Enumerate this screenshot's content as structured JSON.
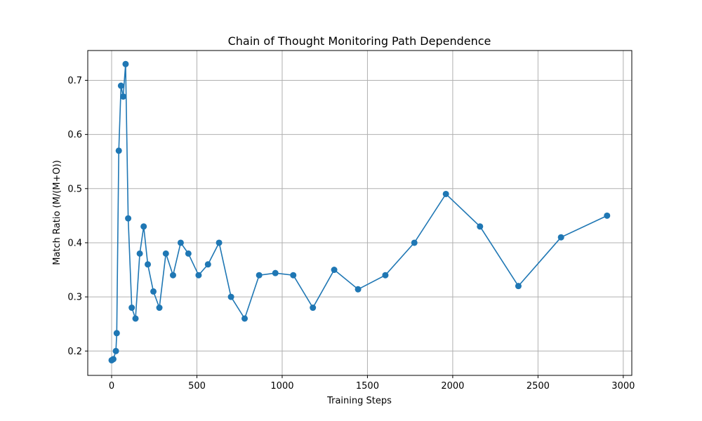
{
  "chart_data": {
    "type": "line",
    "title": "Chain of Thought Monitoring Path Dependence",
    "xlabel": "Training Steps",
    "ylabel": "Match Ratio (M/(M+O))",
    "xlim": [
      -140,
      3050
    ],
    "ylim": [
      0.155,
      0.755
    ],
    "xticks": [
      0,
      500,
      1000,
      1500,
      2000,
      2500,
      3000
    ],
    "yticks": [
      0.2,
      0.3,
      0.4,
      0.5,
      0.6,
      0.7
    ],
    "xtick_labels": [
      "0",
      "500",
      "1000",
      "1500",
      "2000",
      "2500",
      "3000"
    ],
    "ytick_labels": [
      "0.2",
      "0.3",
      "0.4",
      "0.5",
      "0.6",
      "0.7"
    ],
    "grid": true,
    "series_color": "#1f77b4",
    "series": [
      {
        "x": [
          0,
          10,
          25,
          30,
          42,
          55,
          68,
          82,
          97,
          118,
          140,
          165,
          188,
          212,
          245,
          280,
          318,
          360,
          405,
          450,
          510,
          565,
          630,
          700,
          780,
          865,
          960,
          1065,
          1180,
          1305,
          1445,
          1605,
          1775,
          1960,
          2160,
          2385,
          2635,
          2905
        ],
        "y": [
          0.183,
          0.185,
          0.2,
          0.233,
          0.57,
          0.69,
          0.67,
          0.73,
          0.445,
          0.28,
          0.26,
          0.38,
          0.43,
          0.36,
          0.31,
          0.28,
          0.38,
          0.34,
          0.4,
          0.38,
          0.34,
          0.36,
          0.4,
          0.3,
          0.26,
          0.34,
          0.344,
          0.34,
          0.28,
          0.35,
          0.314,
          0.34,
          0.4,
          0.49,
          0.43,
          0.32,
          0.41,
          0.45
        ]
      }
    ]
  }
}
